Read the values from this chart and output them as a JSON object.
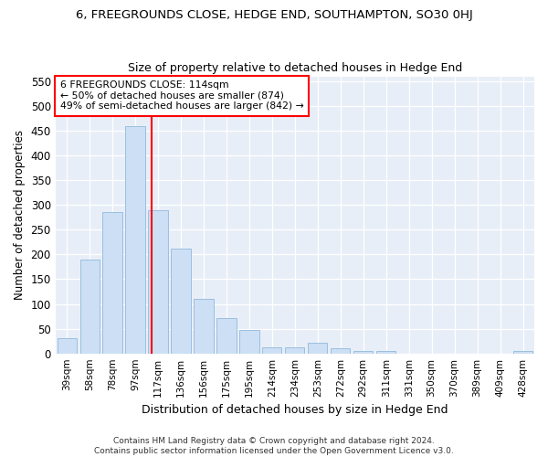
{
  "title": "6, FREEGROUNDS CLOSE, HEDGE END, SOUTHAMPTON, SO30 0HJ",
  "subtitle": "Size of property relative to detached houses in Hedge End",
  "xlabel": "Distribution of detached houses by size in Hedge End",
  "ylabel": "Number of detached properties",
  "bar_color": "#ccdff5",
  "bar_edge_color": "#9bbfdf",
  "background_color": "#e8eef8",
  "grid_color": "#ffffff",
  "fig_bg_color": "#ffffff",
  "categories": [
    "39sqm",
    "58sqm",
    "78sqm",
    "97sqm",
    "117sqm",
    "136sqm",
    "156sqm",
    "175sqm",
    "195sqm",
    "214sqm",
    "234sqm",
    "253sqm",
    "272sqm",
    "292sqm",
    "311sqm",
    "331sqm",
    "350sqm",
    "370sqm",
    "389sqm",
    "409sqm",
    "428sqm"
  ],
  "values": [
    30,
    190,
    285,
    460,
    290,
    212,
    110,
    72,
    47,
    13,
    13,
    22,
    10,
    5,
    5,
    0,
    0,
    0,
    0,
    0,
    5
  ],
  "ylim": [
    0,
    560
  ],
  "yticks": [
    0,
    50,
    100,
    150,
    200,
    250,
    300,
    350,
    400,
    450,
    500,
    550
  ],
  "vline_x": 3.7,
  "annotation_text": "6 FREEGROUNDS CLOSE: 114sqm\n← 50% of detached houses are smaller (874)\n49% of semi-detached houses are larger (842) →",
  "footer_line1": "Contains HM Land Registry data © Crown copyright and database right 2024.",
  "footer_line2": "Contains public sector information licensed under the Open Government Licence v3.0."
}
